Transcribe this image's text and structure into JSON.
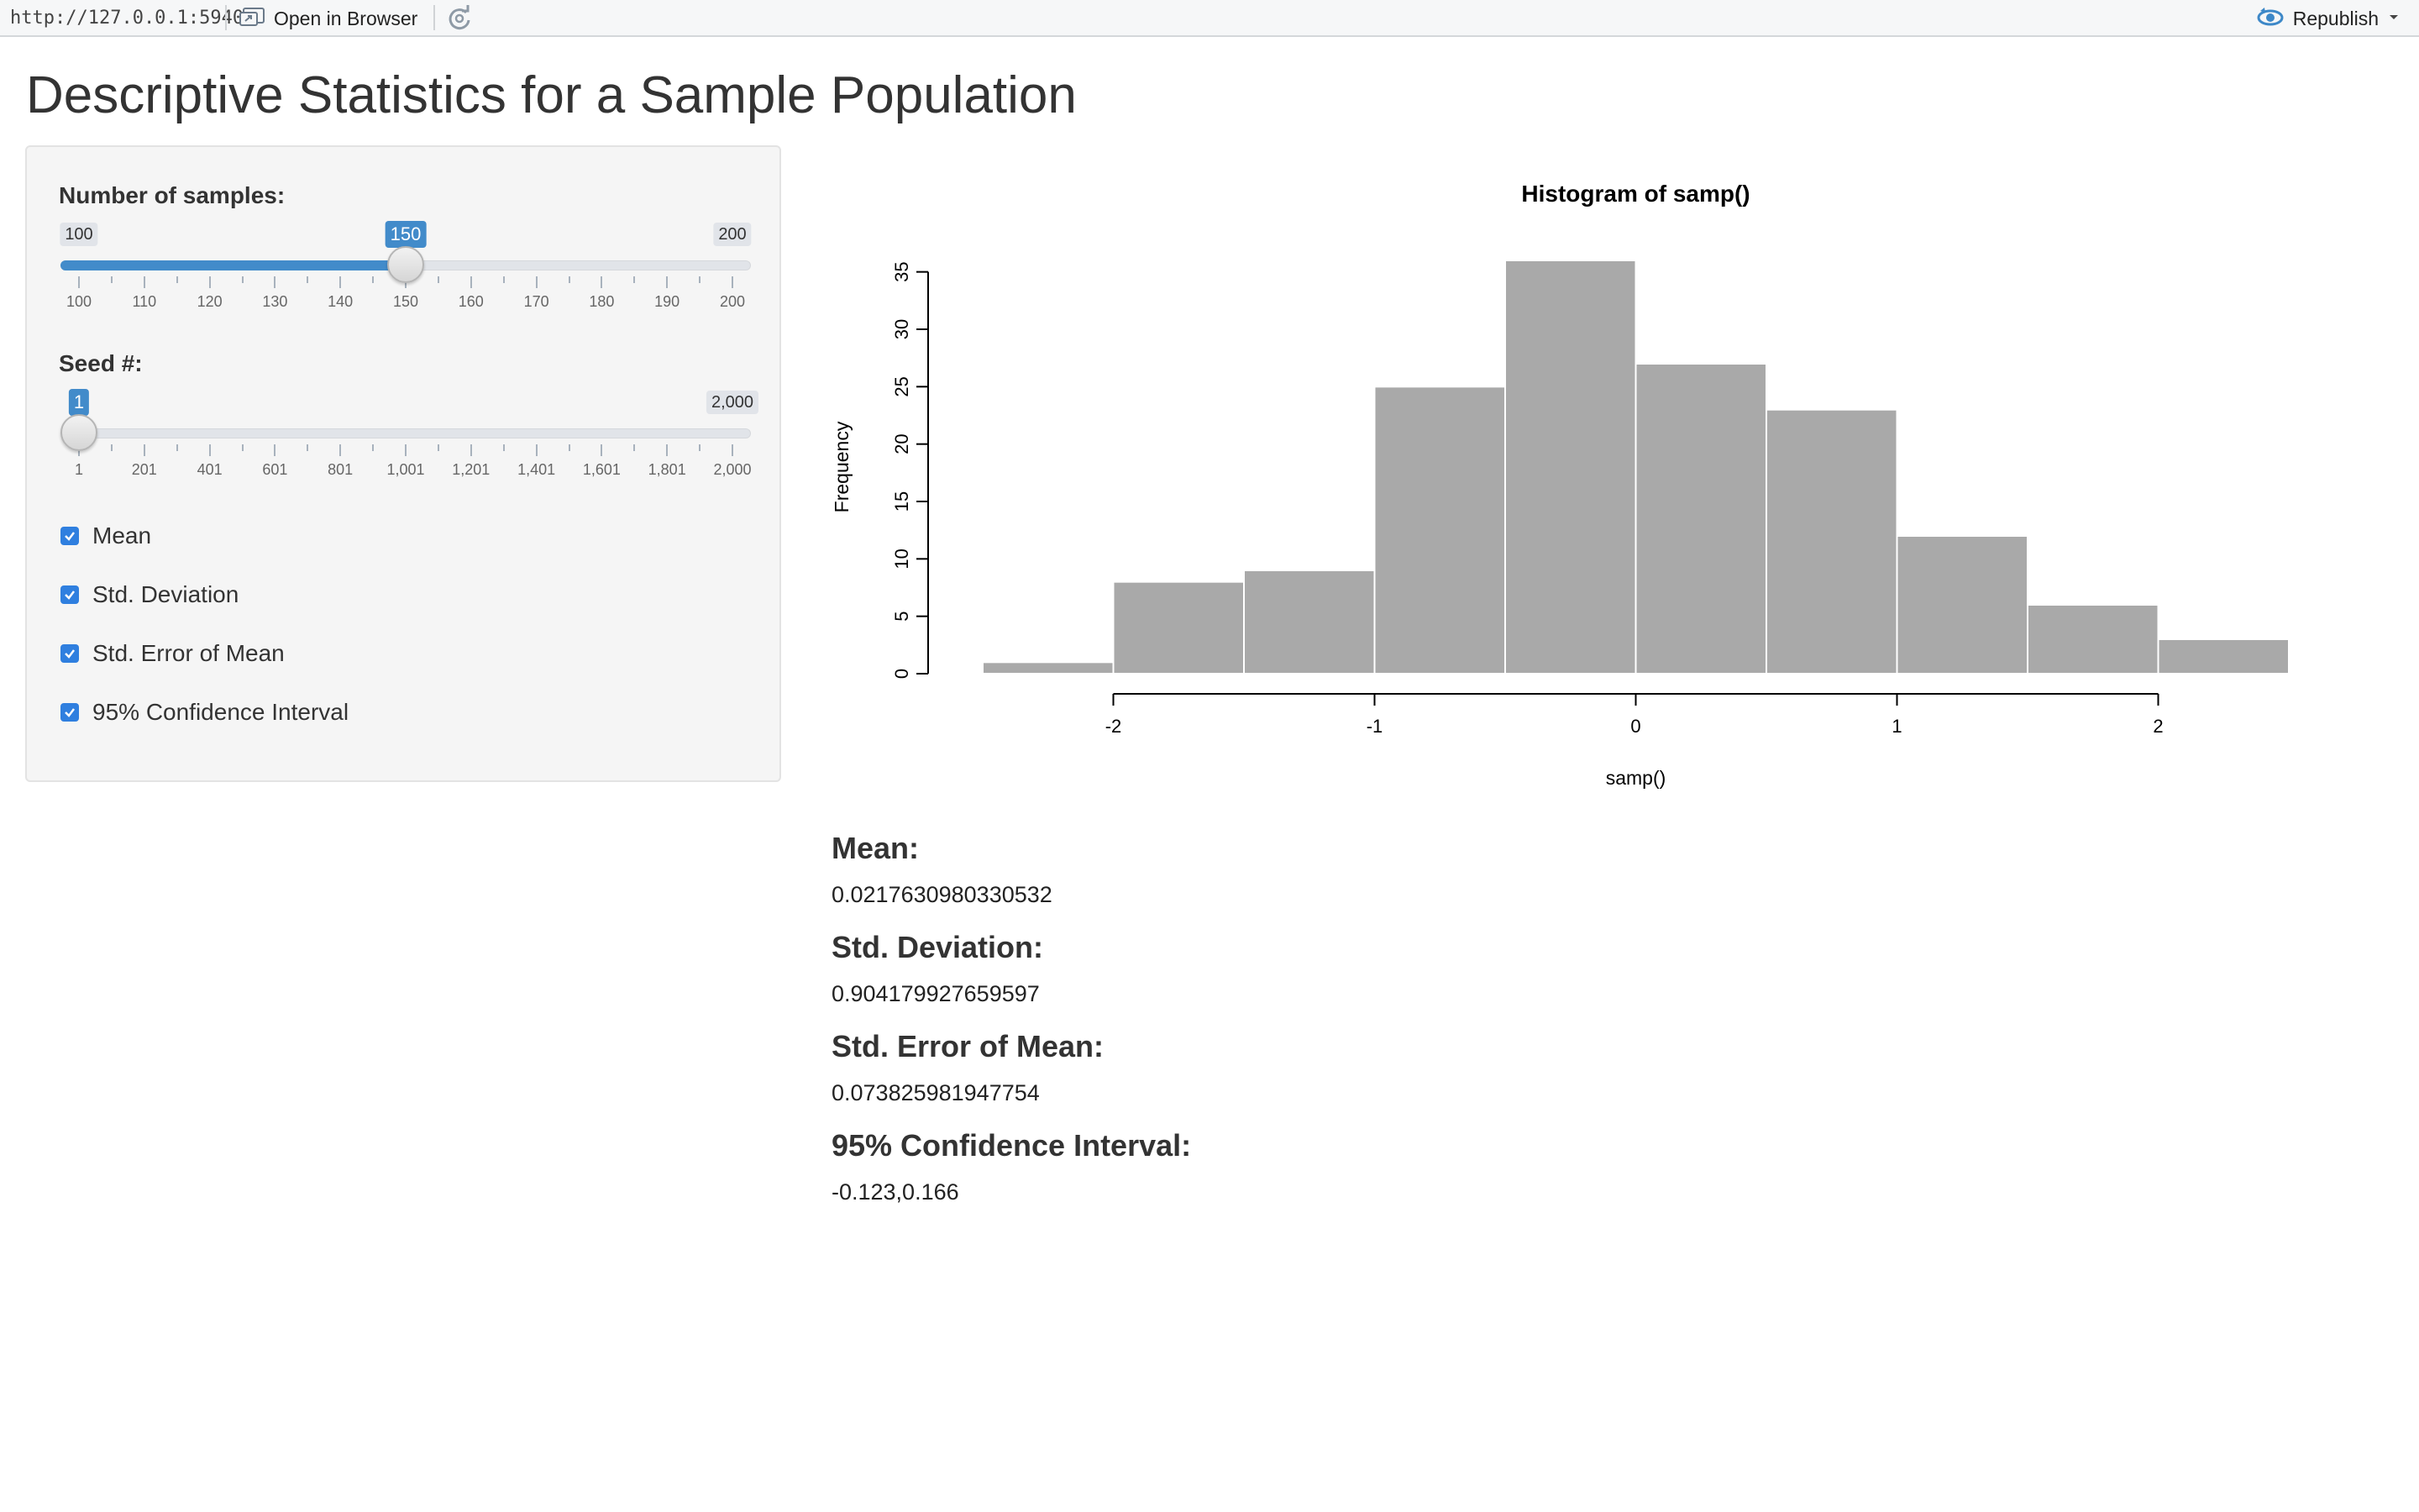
{
  "topbar": {
    "url": "http://127.0.0.1:5940",
    "open_in_browser": "Open in Browser",
    "republish": "Republish"
  },
  "page": {
    "title": "Descriptive Statistics for a Sample Population"
  },
  "sidebar": {
    "samples": {
      "label": "Number of samples:",
      "min": 100,
      "max": 200,
      "value": 150,
      "min_label": "100",
      "max_label": "200",
      "value_label": "150",
      "tick_labels": [
        "100",
        "110",
        "120",
        "130",
        "140",
        "150",
        "160",
        "170",
        "180",
        "190",
        "200"
      ]
    },
    "seed": {
      "label": "Seed #:",
      "min": 1,
      "max": 2000,
      "value": 1,
      "min_label": "1",
      "max_label": "2,000",
      "value_label": "1",
      "tick_labels": [
        "1",
        "201",
        "401",
        "601",
        "801",
        "1,001",
        "1,201",
        "1,401",
        "1,601",
        "1,801",
        "2,000"
      ]
    },
    "checkboxes": [
      {
        "label": "Mean",
        "checked": true
      },
      {
        "label": "Std. Deviation",
        "checked": true
      },
      {
        "label": "Std. Error of Mean",
        "checked": true
      },
      {
        "label": "95% Confidence Interval",
        "checked": true
      }
    ]
  },
  "stats": [
    {
      "heading": "Mean:",
      "value": "0.0217630980330532"
    },
    {
      "heading": "Std. Deviation:",
      "value": "0.904179927659597"
    },
    {
      "heading": "Std. Error of Mean:",
      "value": "0.073825981947754"
    },
    {
      "heading": "95% Confidence Interval:",
      "value": "-0.123,0.166"
    }
  ],
  "colors": {
    "accent": "#428bca",
    "checkbox": "#2f7fdf",
    "bar_fill": "#a9a9a9",
    "bar_border": "#ffffff"
  },
  "icons": {
    "open_in_browser": "open-in-browser-icon",
    "refresh": "refresh-icon",
    "republish": "republish-icon",
    "dropdown": "chevron-down-icon",
    "checkbox": "checkmark-icon"
  },
  "chart_data": {
    "type": "bar",
    "title": "Histogram of samp()",
    "xlabel": "samp()",
    "ylabel": "Frequency",
    "bin_edges": [
      -2.5,
      -2.0,
      -1.5,
      -1.0,
      -0.5,
      0.0,
      0.5,
      1.0,
      1.5,
      2.0,
      2.5
    ],
    "values": [
      1,
      8,
      9,
      25,
      36,
      27,
      23,
      12,
      6,
      3
    ],
    "xlim": [
      -2.5,
      2.5
    ],
    "ylim": [
      0,
      36
    ],
    "x_ticks": [
      -2,
      -1,
      0,
      1,
      2
    ],
    "x_tick_labels": [
      "-2",
      "-1",
      "0",
      "1",
      "2"
    ],
    "y_ticks": [
      0,
      5,
      10,
      15,
      20,
      25,
      30,
      35
    ],
    "y_tick_labels": [
      "0",
      "5",
      "10",
      "15",
      "20",
      "25",
      "30",
      "35"
    ],
    "grid": false,
    "legend": "none"
  }
}
